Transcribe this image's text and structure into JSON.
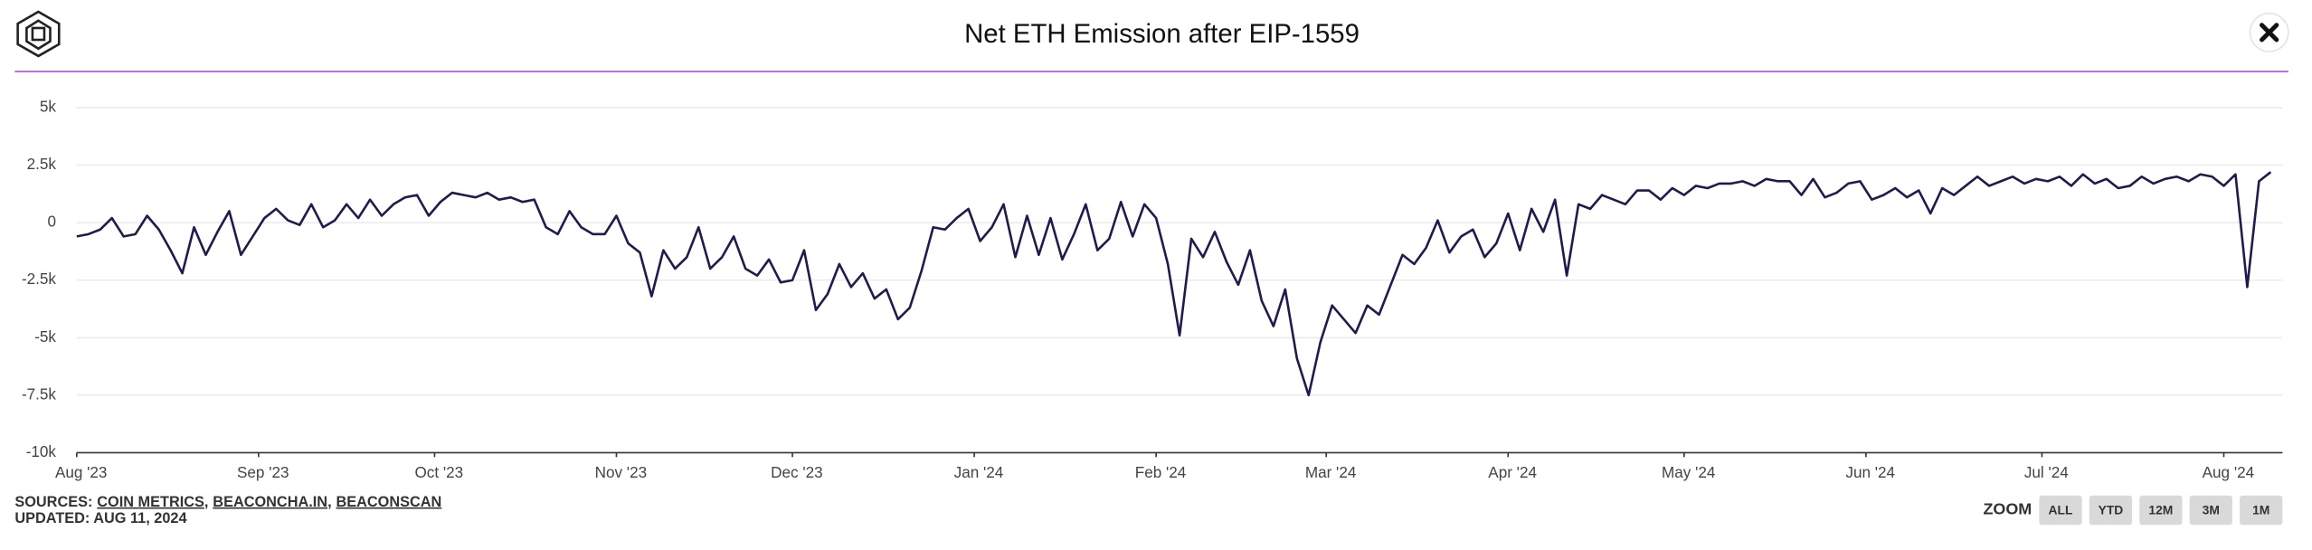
{
  "chart_data": {
    "type": "line",
    "title": "Net ETH Emission after EIP-1559",
    "color": "#1f1b4d",
    "grid": true,
    "values": [
      -600,
      -500,
      -300,
      200,
      -600,
      -500,
      300,
      -300,
      -1200,
      -2200,
      -200,
      -1400,
      -400,
      500,
      -1400,
      -600,
      200,
      600,
      100,
      -100,
      800,
      -200,
      100,
      800,
      200,
      1000,
      300,
      800,
      1100,
      1200,
      300,
      900,
      1300,
      1200,
      1100,
      1300,
      1000,
      1100,
      900,
      1000,
      -200,
      -500,
      500,
      -200,
      -500,
      -500,
      300,
      -900,
      -1300,
      -3200,
      -1200,
      -2000,
      -1500,
      -200,
      -2000,
      -1500,
      -600,
      -2000,
      -2300,
      -1600,
      -2600,
      -2500,
      -1200,
      -3800,
      -3100,
      -1800,
      -2800,
      -2200,
      -3300,
      -2900,
      -4200,
      -3700,
      -2100,
      -200,
      -300,
      200,
      600,
      -800,
      -200,
      800,
      -1500,
      300,
      -1400,
      200,
      -1600,
      -500,
      800,
      -1200,
      -700,
      900,
      -600,
      800,
      200,
      -1800,
      -4900,
      -700,
      -1500,
      -400,
      -1700,
      -2700,
      -1200,
      -3400,
      -4500,
      -2900,
      -5900,
      -7500,
      -5200,
      -3600,
      -4200,
      -4800,
      -3600,
      -4000,
      -2700,
      -1400,
      -1800,
      -1100,
      100,
      -1300,
      -600,
      -300,
      -1500,
      -900,
      400,
      -1200,
      600,
      -400,
      1000,
      -2300,
      800,
      600,
      1200,
      1000,
      800,
      1400,
      1400,
      1000,
      1500,
      1200,
      1600,
      1500,
      1700,
      1700,
      1800,
      1600,
      1900,
      1800,
      1800,
      1200,
      1900,
      1100,
      1300,
      1700,
      1800,
      1000,
      1200,
      1500,
      1100,
      1400,
      400,
      1500,
      1200,
      1600,
      2000,
      1600,
      1800,
      2000,
      1700,
      1900,
      1800,
      2000,
      1600,
      2100,
      1700,
      1900,
      1500,
      1600,
      2000,
      1700,
      1900,
      2000,
      1800,
      2100,
      2000,
      1600,
      2100,
      -2800,
      1800,
      2200
    ],
    "xlim": [
      0,
      188
    ],
    "xticks": [
      {
        "value": 0,
        "label": "Aug '23"
      },
      {
        "value": 15.5,
        "label": "Sep '23"
      },
      {
        "value": 30.5,
        "label": "Oct '23"
      },
      {
        "value": 46,
        "label": "Nov '23"
      },
      {
        "value": 61,
        "label": "Dec '23"
      },
      {
        "value": 76.5,
        "label": "Jan '24"
      },
      {
        "value": 92,
        "label": "Feb '24"
      },
      {
        "value": 106.5,
        "label": "Mar '24"
      },
      {
        "value": 122,
        "label": "Apr '24"
      },
      {
        "value": 137,
        "label": "May '24"
      },
      {
        "value": 152.5,
        "label": "Jun '24"
      },
      {
        "value": 167.5,
        "label": "Jul '24"
      },
      {
        "value": 183,
        "label": "Aug '24"
      }
    ],
    "ylim": [
      -10000,
      5000
    ],
    "yticks": [
      {
        "value": -10000,
        "label": "-10k"
      },
      {
        "value": -7500,
        "label": "-7.5k"
      },
      {
        "value": -5000,
        "label": "-5k"
      },
      {
        "value": -2500,
        "label": "-2.5k"
      },
      0,
      {
        "value": 2500,
        "label": "2.5k"
      },
      {
        "value": 5000,
        "label": "5k"
      }
    ]
  },
  "footer": {
    "sources_label": "SOURCES:",
    "sources": [
      "COIN METRICS",
      "BEACONCHA.IN",
      "BEACONSCAN"
    ],
    "source_separator": ",",
    "updated": "UPDATED: AUG 11, 2024",
    "zoom_label": "ZOOM",
    "zoom_buttons": [
      "ALL",
      "YTD",
      "12M",
      "3M",
      "1M"
    ]
  }
}
